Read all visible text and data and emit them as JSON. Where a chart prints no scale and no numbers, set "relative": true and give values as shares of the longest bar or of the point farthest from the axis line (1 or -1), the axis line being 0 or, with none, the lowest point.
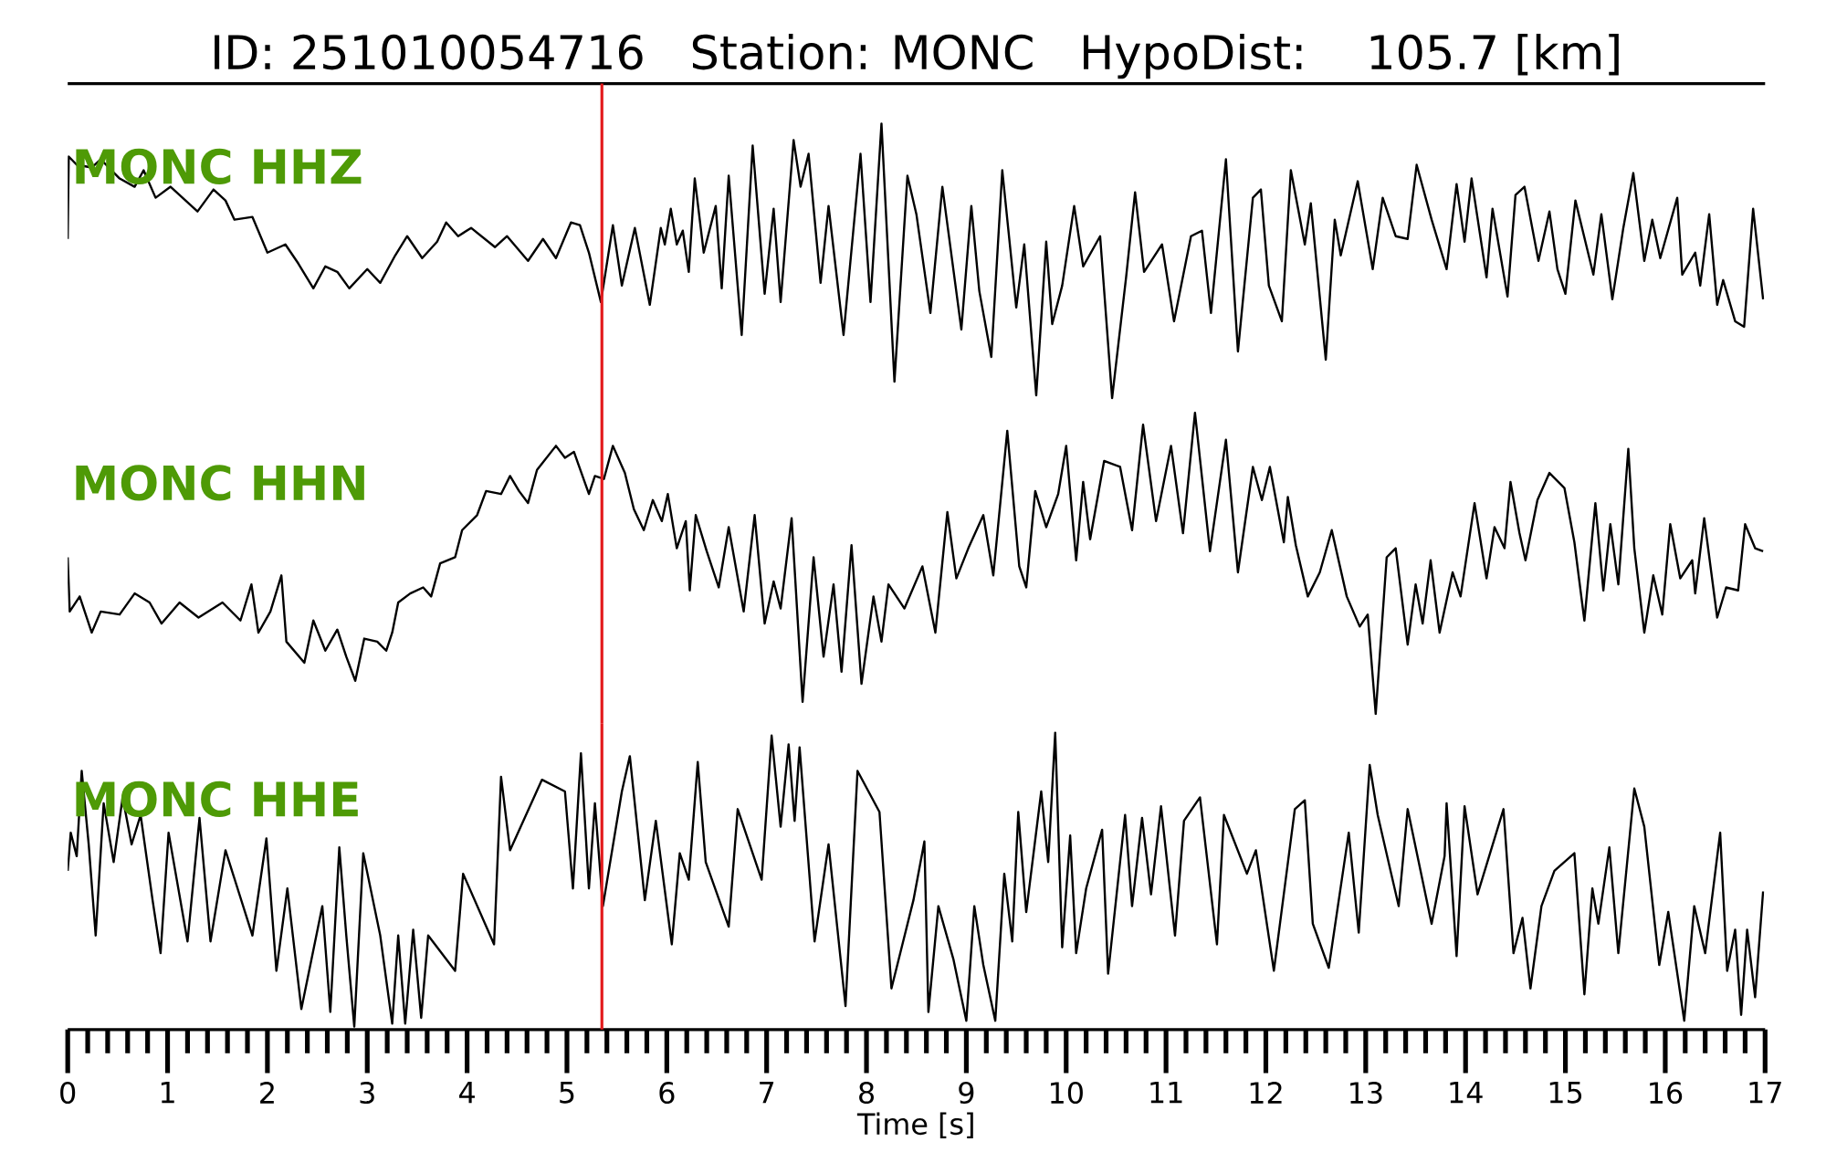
{
  "chart_data": [
    {
      "type": "line",
      "title": "ID: 251010054716   Station: MONC   HypoDist:   105.7 [km]",
      "relative": true,
      "xlim": [
        0,
        17
      ],
      "tick_labels": false,
      "x": [
        0,
        0.01,
        0.09,
        0.24,
        0.33,
        0.52,
        0.67,
        0.76,
        0.88,
        1.03,
        1.3,
        1.46,
        1.58,
        1.67,
        1.85,
        2.0,
        2.18,
        2.31,
        2.46,
        2.58,
        2.7,
        2.82,
        3.0,
        3.13,
        3.28,
        3.4,
        3.55,
        3.7,
        3.79,
        3.91,
        4.04,
        4.28,
        4.4,
        4.61,
        4.76,
        4.89,
        5.04,
        5.13,
        5.22,
        5.34,
        5.46,
        5.55,
        5.68,
        5.83,
        5.94,
        5.98,
        6.04,
        6.1,
        6.16,
        6.22,
        6.28,
        6.37,
        6.49,
        6.55,
        6.62,
        6.75,
        6.86,
        6.98,
        7.07,
        7.14,
        7.27,
        7.34,
        7.42,
        7.54,
        7.62,
        7.77,
        7.94,
        8.04,
        8.15,
        8.28,
        8.41,
        8.5,
        8.64,
        8.76,
        8.95,
        9.05,
        9.13,
        9.25,
        9.36,
        9.5,
        9.58,
        9.7,
        9.8,
        9.86,
        9.96,
        10.08,
        10.17,
        10.34,
        10.46,
        10.6,
        10.69,
        10.78,
        10.96,
        11.08,
        11.25,
        11.36,
        11.45,
        11.6,
        11.72,
        11.87,
        11.95,
        12.03,
        12.16,
        12.25,
        12.39,
        12.45,
        12.6,
        12.69,
        12.75,
        12.92,
        13.07,
        13.17,
        13.3,
        13.42,
        13.51,
        13.66,
        13.81,
        13.91,
        13.99,
        14.06,
        14.21,
        14.27,
        14.42,
        14.5,
        14.59,
        14.73,
        14.84,
        14.92,
        15.0,
        15.1,
        15.28,
        15.36,
        15.47,
        15.58,
        15.68,
        15.79,
        15.87,
        15.95,
        16.12,
        16.17,
        16.3,
        16.35,
        16.44,
        16.52,
        16.58,
        16.7,
        16.79,
        16.88,
        16.98
      ],
      "series": [
        {
          "name": "MONC HHZ",
          "color": "#000000",
          "values": [
            0.58,
            0.88,
            0.85,
            0.84,
            0.87,
            0.8,
            0.77,
            0.83,
            0.73,
            0.77,
            0.68,
            0.76,
            0.72,
            0.65,
            0.66,
            0.53,
            0.56,
            0.49,
            0.4,
            0.48,
            0.46,
            0.4,
            0.47,
            0.42,
            0.52,
            0.59,
            0.51,
            0.57,
            0.64,
            0.59,
            0.62,
            0.55,
            0.59,
            0.5,
            0.58,
            0.51,
            0.64,
            0.63,
            0.53,
            0.35,
            0.63,
            0.41,
            0.62,
            0.34,
            0.62,
            0.56,
            0.69,
            0.56,
            0.61,
            0.46,
            0.8,
            0.53,
            0.7,
            0.4,
            0.81,
            0.23,
            0.92,
            0.38,
            0.69,
            0.35,
            0.94,
            0.77,
            0.89,
            0.42,
            0.7,
            0.23,
            0.89,
            0.35,
            1.0,
            0.06,
            0.81,
            0.67,
            0.31,
            0.77,
            0.25,
            0.7,
            0.39,
            0.15,
            0.83,
            0.33,
            0.56,
            0.01,
            0.57,
            0.27,
            0.41,
            0.7,
            0.48,
            0.59,
            0.0,
            0.44,
            0.75,
            0.46,
            0.56,
            0.28,
            0.59,
            0.61,
            0.31,
            0.87,
            0.17,
            0.73,
            0.76,
            0.41,
            0.28,
            0.83,
            0.56,
            0.71,
            0.14,
            0.65,
            0.52,
            0.79,
            0.47,
            0.73,
            0.59,
            0.58,
            0.85,
            0.65,
            0.47,
            0.78,
            0.57,
            0.8,
            0.44,
            0.69,
            0.37,
            0.74,
            0.77,
            0.5,
            0.68,
            0.47,
            0.38,
            0.72,
            0.45,
            0.67,
            0.36,
            0.62,
            0.82,
            0.5,
            0.65,
            0.51,
            0.73,
            0.45,
            0.53,
            0.41,
            0.67,
            0.34,
            0.43,
            0.28,
            0.26,
            0.69,
            0.36
          ]
        }
      ],
      "ref_lines": [
        {
          "axis": "x",
          "value": 5.35,
          "color": "#e31a1c"
        }
      ]
    },
    {
      "type": "line",
      "relative": true,
      "xlim": [
        0,
        17
      ],
      "tick_labels": false,
      "x": [
        0,
        0.02,
        0.12,
        0.24,
        0.33,
        0.52,
        0.67,
        0.82,
        0.94,
        1.12,
        1.31,
        1.55,
        1.73,
        1.84,
        1.91,
        2.03,
        2.14,
        2.19,
        2.37,
        2.46,
        2.58,
        2.7,
        2.79,
        2.88,
        2.97,
        3.1,
        3.19,
        3.25,
        3.31,
        3.43,
        3.56,
        3.64,
        3.73,
        3.88,
        3.95,
        4.1,
        4.19,
        4.34,
        4.43,
        4.52,
        4.61,
        4.7,
        4.89,
        4.98,
        5.07,
        5.22,
        5.28,
        5.37,
        5.46,
        5.58,
        5.67,
        5.77,
        5.86,
        5.95,
        6.01,
        6.1,
        6.19,
        6.23,
        6.29,
        6.4,
        6.52,
        6.62,
        6.77,
        6.88,
        6.98,
        7.07,
        7.14,
        7.25,
        7.36,
        7.47,
        7.57,
        7.67,
        7.75,
        7.85,
        7.95,
        8.07,
        8.15,
        8.22,
        8.38,
        8.56,
        8.69,
        8.81,
        8.9,
        9.02,
        9.17,
        9.27,
        9.41,
        9.53,
        9.6,
        9.69,
        9.8,
        9.92,
        10.0,
        10.1,
        10.17,
        10.24,
        10.38,
        10.54,
        10.66,
        10.77,
        10.9,
        11.05,
        11.17,
        11.29,
        11.44,
        11.6,
        11.72,
        11.87,
        11.96,
        12.04,
        12.18,
        12.22,
        12.3,
        12.42,
        12.54,
        12.66,
        12.81,
        12.94,
        13.02,
        13.1,
        13.21,
        13.3,
        13.42,
        13.5,
        13.57,
        13.65,
        13.74,
        13.87,
        13.95,
        14.09,
        14.21,
        14.29,
        14.39,
        14.45,
        14.54,
        14.6,
        14.72,
        14.84,
        14.99,
        15.09,
        15.19,
        15.3,
        15.38,
        15.45,
        15.53,
        15.63,
        15.69,
        15.79,
        15.88,
        15.97,
        16.05,
        16.15,
        16.27,
        16.3,
        16.39,
        16.52,
        16.61,
        16.73,
        16.8,
        16.9,
        16.98
      ],
      "series": [
        {
          "name": "MONC HHN",
          "color": "#000000",
          "values": [
            0.52,
            0.34,
            0.39,
            0.27,
            0.34,
            0.33,
            0.4,
            0.37,
            0.3,
            0.37,
            0.32,
            0.37,
            0.31,
            0.43,
            0.27,
            0.34,
            0.46,
            0.24,
            0.17,
            0.31,
            0.21,
            0.28,
            0.19,
            0.11,
            0.25,
            0.24,
            0.21,
            0.27,
            0.37,
            0.4,
            0.42,
            0.39,
            0.5,
            0.52,
            0.61,
            0.66,
            0.74,
            0.73,
            0.79,
            0.74,
            0.7,
            0.81,
            0.89,
            0.85,
            0.87,
            0.73,
            0.79,
            0.78,
            0.89,
            0.8,
            0.68,
            0.61,
            0.71,
            0.64,
            0.73,
            0.55,
            0.64,
            0.41,
            0.66,
            0.54,
            0.42,
            0.62,
            0.34,
            0.66,
            0.3,
            0.44,
            0.35,
            0.65,
            0.04,
            0.52,
            0.19,
            0.43,
            0.14,
            0.56,
            0.1,
            0.39,
            0.24,
            0.43,
            0.35,
            0.49,
            0.27,
            0.67,
            0.45,
            0.55,
            0.66,
            0.46,
            0.94,
            0.49,
            0.42,
            0.74,
            0.62,
            0.73,
            0.89,
            0.51,
            0.77,
            0.58,
            0.84,
            0.82,
            0.61,
            0.96,
            0.64,
            0.89,
            0.6,
            1.0,
            0.54,
            0.91,
            0.47,
            0.82,
            0.71,
            0.82,
            0.57,
            0.72,
            0.56,
            0.39,
            0.47,
            0.61,
            0.39,
            0.29,
            0.33,
            0.0,
            0.52,
            0.55,
            0.23,
            0.43,
            0.3,
            0.51,
            0.27,
            0.47,
            0.39,
            0.7,
            0.45,
            0.62,
            0.55,
            0.77,
            0.6,
            0.51,
            0.71,
            0.8,
            0.75,
            0.57,
            0.31,
            0.7,
            0.41,
            0.63,
            0.43,
            0.88,
            0.55,
            0.27,
            0.46,
            0.33,
            0.63,
            0.45,
            0.51,
            0.4,
            0.65,
            0.32,
            0.42,
            0.41,
            0.63,
            0.55,
            0.54
          ]
        }
      ],
      "ref_lines": [
        {
          "axis": "x",
          "value": 5.35,
          "color": "#e31a1c"
        }
      ]
    },
    {
      "type": "line",
      "xlabel": "Time [s]",
      "relative": true,
      "xlim": [
        0,
        17
      ],
      "tick_labels": "x",
      "xticks": [
        0,
        {
          "value": 0.2,
          "label": null
        },
        {
          "value": 0.4,
          "label": null
        },
        {
          "value": 0.6,
          "label": null
        },
        {
          "value": 0.8,
          "label": null
        },
        1,
        {
          "value": 1.2,
          "label": null
        },
        {
          "value": 1.4,
          "label": null
        },
        {
          "value": 1.6,
          "label": null
        },
        {
          "value": 1.8,
          "label": null
        },
        2,
        {
          "value": 2.2,
          "label": null
        },
        {
          "value": 2.4,
          "label": null
        },
        {
          "value": 2.6,
          "label": null
        },
        {
          "value": 2.8,
          "label": null
        },
        3,
        {
          "value": 3.2,
          "label": null
        },
        {
          "value": 3.4,
          "label": null
        },
        {
          "value": 3.6,
          "label": null
        },
        {
          "value": 3.8,
          "label": null
        },
        4,
        {
          "value": 4.2,
          "label": null
        },
        {
          "value": 4.4,
          "label": null
        },
        {
          "value": 4.6,
          "label": null
        },
        {
          "value": 4.8,
          "label": null
        },
        5,
        {
          "value": 5.2,
          "label": null
        },
        {
          "value": 5.4,
          "label": null
        },
        {
          "value": 5.6,
          "label": null
        },
        {
          "value": 5.8,
          "label": null
        },
        6,
        {
          "value": 6.2,
          "label": null
        },
        {
          "value": 6.4,
          "label": null
        },
        {
          "value": 6.6,
          "label": null
        },
        {
          "value": 6.8,
          "label": null
        },
        7,
        {
          "value": 7.2,
          "label": null
        },
        {
          "value": 7.4,
          "label": null
        },
        {
          "value": 7.6,
          "label": null
        },
        {
          "value": 7.8,
          "label": null
        },
        8,
        {
          "value": 8.2,
          "label": null
        },
        {
          "value": 8.4,
          "label": null
        },
        {
          "value": 8.6,
          "label": null
        },
        {
          "value": 8.8,
          "label": null
        },
        9,
        {
          "value": 9.2,
          "label": null
        },
        {
          "value": 9.4,
          "label": null
        },
        {
          "value": 9.6,
          "label": null
        },
        {
          "value": 9.8,
          "label": null
        },
        10,
        {
          "value": 10.2,
          "label": null
        },
        {
          "value": 10.4,
          "label": null
        },
        {
          "value": 10.6,
          "label": null
        },
        {
          "value": 10.8,
          "label": null
        },
        11,
        {
          "value": 11.2,
          "label": null
        },
        {
          "value": 11.4,
          "label": null
        },
        {
          "value": 11.6,
          "label": null
        },
        {
          "value": 11.8,
          "label": null
        },
        12,
        {
          "value": 12.2,
          "label": null
        },
        {
          "value": 12.4,
          "label": null
        },
        {
          "value": 12.6,
          "label": null
        },
        {
          "value": 12.8,
          "label": null
        },
        13,
        {
          "value": 13.2,
          "label": null
        },
        {
          "value": 13.4,
          "label": null
        },
        {
          "value": 13.6,
          "label": null
        },
        {
          "value": 13.8,
          "label": null
        },
        14,
        {
          "value": 14.2,
          "label": null
        },
        {
          "value": 14.4,
          "label": null
        },
        {
          "value": 14.6,
          "label": null
        },
        {
          "value": 14.8,
          "label": null
        },
        15,
        {
          "value": 15.2,
          "label": null
        },
        {
          "value": 15.4,
          "label": null
        },
        {
          "value": 15.6,
          "label": null
        },
        {
          "value": 15.8,
          "label": null
        },
        16,
        {
          "value": 16.2,
          "label": null
        },
        {
          "value": 16.4,
          "label": null
        },
        {
          "value": 16.6,
          "label": null
        },
        {
          "value": 16.8,
          "label": null
        },
        17
      ],
      "x": [
        0,
        0.03,
        0.09,
        0.14,
        0.21,
        0.28,
        0.36,
        0.46,
        0.55,
        0.64,
        0.73,
        0.85,
        0.93,
        1.01,
        1.2,
        1.32,
        1.43,
        1.58,
        1.85,
        1.99,
        2.09,
        2.2,
        2.34,
        2.55,
        2.63,
        2.72,
        2.79,
        2.87,
        2.96,
        3.13,
        3.25,
        3.31,
        3.38,
        3.46,
        3.54,
        3.61,
        3.88,
        3.96,
        4.27,
        4.34,
        4.43,
        4.75,
        4.98,
        5.06,
        5.14,
        5.22,
        5.28,
        5.36,
        5.55,
        5.63,
        5.78,
        5.89,
        6.05,
        6.13,
        6.22,
        6.31,
        6.39,
        6.62,
        6.71,
        6.95,
        7.05,
        7.14,
        7.22,
        7.28,
        7.33,
        7.48,
        7.62,
        7.79,
        7.91,
        8.13,
        8.25,
        8.47,
        8.58,
        8.62,
        8.72,
        8.87,
        9.0,
        9.08,
        9.17,
        9.29,
        9.38,
        9.46,
        9.52,
        9.6,
        9.75,
        9.82,
        9.89,
        9.96,
        10.04,
        10.1,
        10.2,
        10.36,
        10.42,
        10.59,
        10.66,
        10.76,
        10.85,
        10.95,
        11.09,
        11.18,
        11.34,
        11.51,
        11.58,
        11.81,
        11.9,
        12.08,
        12.29,
        12.39,
        12.47,
        12.63,
        12.83,
        12.93,
        13.04,
        13.12,
        13.33,
        13.42,
        13.66,
        13.79,
        13.81,
        13.91,
        13.99,
        14.12,
        14.38,
        14.48,
        14.57,
        14.65,
        14.76,
        14.89,
        15.09,
        15.19,
        15.27,
        15.33,
        15.44,
        15.53,
        15.69,
        15.79,
        15.94,
        16.03,
        16.19,
        16.29,
        16.4,
        16.55,
        16.62,
        16.7,
        16.76,
        16.82,
        16.9,
        16.98
      ],
      "series": [
        {
          "name": "MONC HHE",
          "color": "#000000",
          "values": [
            0.53,
            0.66,
            0.58,
            0.87,
            0.62,
            0.31,
            0.76,
            0.56,
            0.78,
            0.62,
            0.72,
            0.43,
            0.25,
            0.66,
            0.29,
            0.71,
            0.29,
            0.6,
            0.31,
            0.64,
            0.19,
            0.47,
            0.06,
            0.41,
            0.05,
            0.61,
            0.31,
            0.0,
            0.59,
            0.31,
            0.01,
            0.31,
            0.01,
            0.33,
            0.03,
            0.31,
            0.19,
            0.52,
            0.28,
            0.85,
            0.6,
            0.84,
            0.8,
            0.47,
            0.93,
            0.47,
            0.76,
            0.41,
            0.8,
            0.92,
            0.43,
            0.7,
            0.28,
            0.59,
            0.5,
            0.9,
            0.56,
            0.34,
            0.74,
            0.5,
            0.99,
            0.68,
            0.96,
            0.7,
            0.95,
            0.29,
            0.62,
            0.07,
            0.87,
            0.73,
            0.13,
            0.43,
            0.63,
            0.05,
            0.41,
            0.23,
            0.02,
            0.41,
            0.21,
            0.02,
            0.52,
            0.29,
            0.73,
            0.39,
            0.8,
            0.56,
            1.0,
            0.27,
            0.65,
            0.25,
            0.47,
            0.67,
            0.18,
            0.72,
            0.41,
            0.71,
            0.45,
            0.75,
            0.31,
            0.7,
            0.78,
            0.28,
            0.72,
            0.52,
            0.6,
            0.19,
            0.74,
            0.77,
            0.35,
            0.2,
            0.66,
            0.32,
            0.89,
            0.72,
            0.41,
            0.74,
            0.35,
            0.58,
            0.76,
            0.24,
            0.75,
            0.45,
            0.74,
            0.25,
            0.37,
            0.13,
            0.41,
            0.53,
            0.59,
            0.11,
            0.47,
            0.35,
            0.61,
            0.25,
            0.81,
            0.68,
            0.21,
            0.39,
            0.02,
            0.41,
            0.25,
            0.66,
            0.19,
            0.33,
            0.04,
            0.33,
            0.1,
            0.46
          ]
        }
      ],
      "ref_lines": [
        {
          "axis": "x",
          "value": 5.35,
          "color": "#e31a1c"
        }
      ]
    }
  ]
}
